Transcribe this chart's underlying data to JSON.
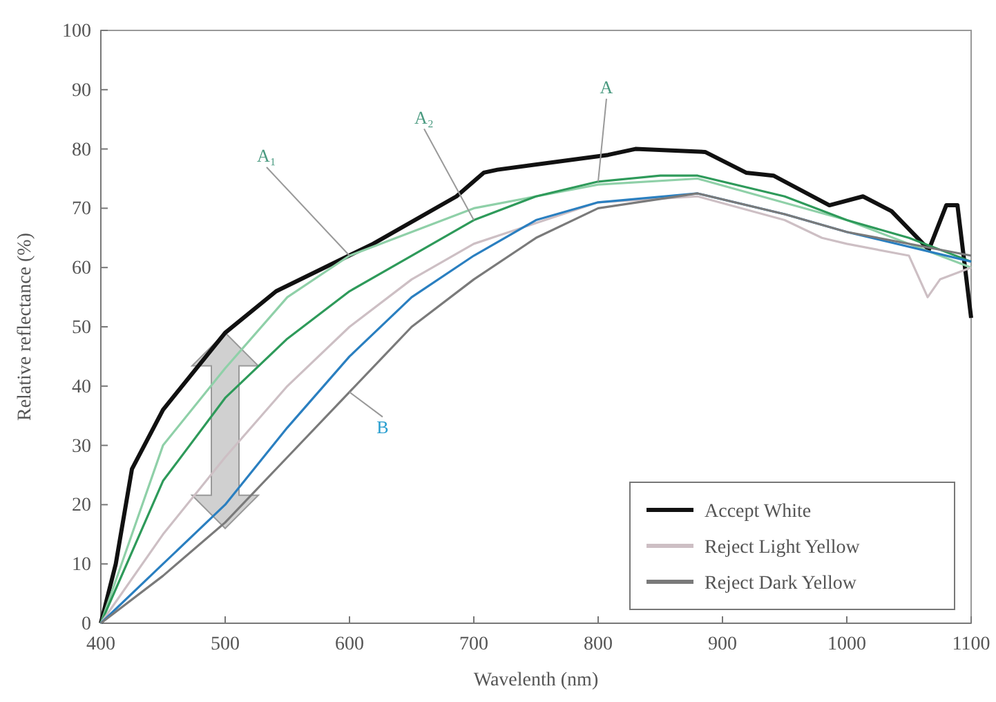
{
  "chart_data": {
    "type": "line",
    "xlabel": "Wavelenth (nm)",
    "ylabel": "Relative reflectance (%)",
    "xlim": [
      400,
      1100
    ],
    "ylim": [
      0,
      100
    ],
    "xticks": [
      400,
      500,
      600,
      700,
      800,
      900,
      1000,
      1100
    ],
    "yticks": [
      0,
      10,
      20,
      30,
      40,
      50,
      60,
      70,
      80,
      90,
      100
    ],
    "grid": false,
    "legend": "bottom right",
    "line_style": "solid",
    "marker": "none",
    "series": [
      {
        "name": "Accept White",
        "color": "#111111",
        "x": [
          400,
          412,
          425,
          450,
          500,
          541,
          619,
          686,
          708,
          719,
          808,
          830,
          886,
          919,
          941,
          986,
          1013,
          1036,
          1066,
          1080,
          1089,
          1100
        ],
        "values": [
          0,
          10,
          26,
          36,
          49,
          56,
          64,
          72,
          76,
          76.5,
          79,
          80,
          79.5,
          76,
          75.5,
          70.5,
          72,
          69.5,
          63,
          70.5,
          70.5,
          51.5
        ]
      },
      {
        "color": "#8fd0a8",
        "x": [
          400,
          450,
          500,
          550,
          600,
          650,
          700,
          800,
          880,
          1000,
          1100
        ],
        "values": [
          0,
          30,
          43,
          55,
          62,
          66,
          70,
          74,
          75,
          68,
          60
        ]
      },
      {
        "color": "#2e9a5a",
        "x": [
          400,
          450,
          500,
          550,
          600,
          650,
          700,
          750,
          800,
          850,
          880,
          950,
          1000,
          1050,
          1100
        ],
        "values": [
          0,
          24,
          38,
          48,
          56,
          62,
          68,
          72,
          74.5,
          75.5,
          75.5,
          72,
          68,
          65,
          61
        ]
      },
      {
        "name": "Reject Light Yellow",
        "color": "#cdbfc4",
        "x": [
          400,
          450,
          500,
          550,
          600,
          650,
          700,
          800,
          880,
          950,
          980,
          1000,
          1050,
          1065,
          1075,
          1100
        ],
        "values": [
          0,
          15,
          28,
          40,
          50,
          58,
          64,
          71,
          72,
          68,
          65,
          64,
          62,
          55,
          58,
          60
        ]
      },
      {
        "color": "#2a7fc0",
        "x": [
          400,
          450,
          500,
          550,
          600,
          650,
          700,
          750,
          800,
          880,
          950,
          1000,
          1100
        ],
        "values": [
          0,
          10,
          20,
          33,
          45,
          55,
          62,
          68,
          71,
          72.5,
          69,
          66,
          61
        ]
      },
      {
        "name": "Reject Dark Yellow",
        "color": "#7a7a7a",
        "x": [
          400,
          450,
          500,
          550,
          600,
          650,
          700,
          750,
          800,
          880,
          950,
          1000,
          1100
        ],
        "values": [
          0,
          8,
          17,
          28,
          39,
          50,
          58,
          65,
          70,
          72.5,
          69,
          66,
          62
        ]
      }
    ],
    "annotations": [
      {
        "text": "A₁",
        "x": 600,
        "y": 62
      },
      {
        "text": "A₂",
        "x": 700,
        "y": 68
      },
      {
        "text": "A",
        "x": 800,
        "y": 74.5
      },
      {
        "text": "B",
        "x": 600,
        "y": 39
      }
    ]
  }
}
